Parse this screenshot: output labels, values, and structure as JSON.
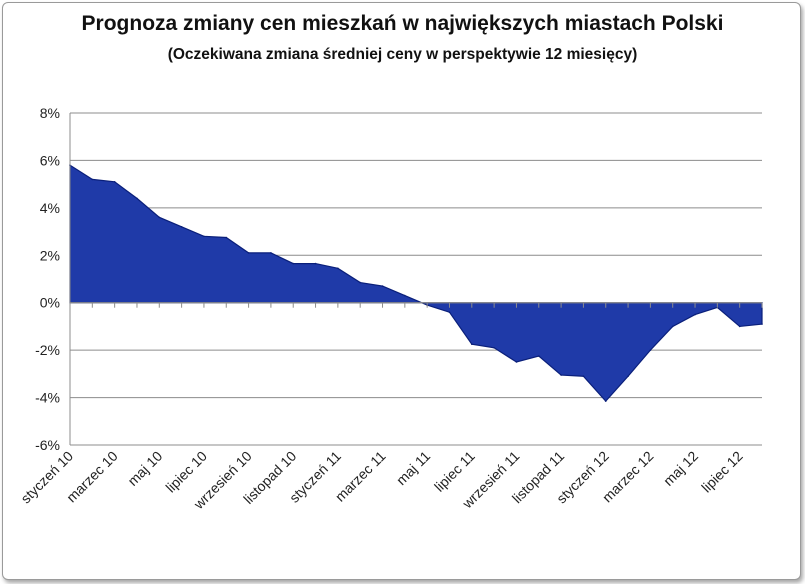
{
  "chart_data": {
    "type": "area",
    "title": "Prognoza zmiany cen mieszkań w największych miastach Polski",
    "subtitle": "(Oczekiwana zmiana średniej ceny w perspektywie 12 miesięcy)",
    "xlabel": "",
    "ylabel": "",
    "ylim": [
      -6,
      8
    ],
    "yticks": [
      8,
      6,
      4,
      2,
      0,
      -2,
      -4,
      -6
    ],
    "ytick_format": "%",
    "grid": true,
    "legend": "none",
    "fill_color": "#1f3aa8",
    "edge_color": "#0a1f7a",
    "tick_labels": [
      "styczeń 10",
      "marzec 10",
      "maj 10",
      "lipiec 10",
      "wrzesień 10",
      "listopad 10",
      "styczeń 11",
      "marzec 11",
      "maj 11",
      "lipiec 11",
      "wrzesień 11",
      "listopad 11",
      "styczeń 12",
      "marzec 12",
      "maj 12",
      "lipiec 12"
    ],
    "series": [
      {
        "values": [
          5.8,
          5.2,
          5.1,
          4.4,
          3.6,
          3.2,
          2.8,
          2.75,
          2.1,
          2.1,
          1.65,
          1.65,
          1.45,
          0.85,
          0.7,
          0.3,
          -0.1,
          -0.4,
          -1.75,
          -1.9,
          -2.5,
          -2.25,
          -3.05,
          -3.1,
          -4.15,
          -3.1,
          -2.0,
          -1.0,
          -0.5,
          -0.2,
          -1.0,
          -0.9
        ]
      }
    ]
  }
}
